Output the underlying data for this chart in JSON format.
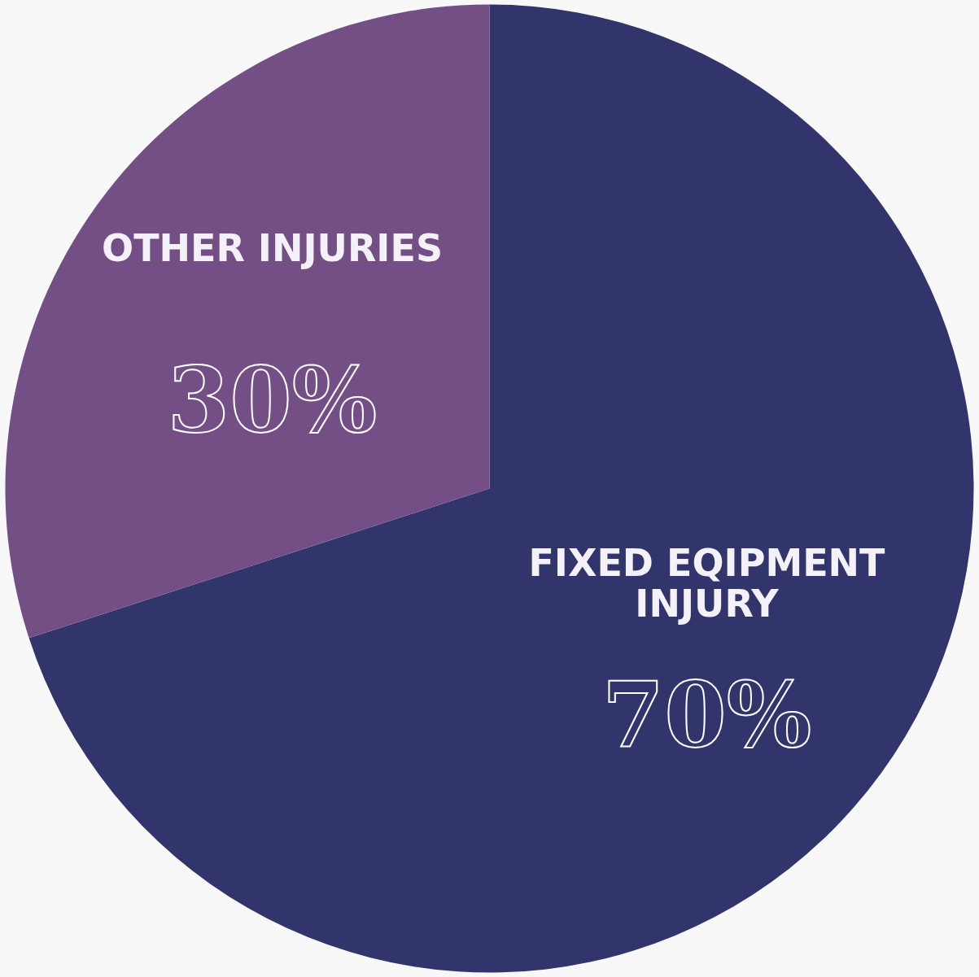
{
  "chart_data": {
    "type": "pie",
    "categories": [
      "FIXED EQIPMENT INJURY",
      "OTHER INJURIES"
    ],
    "values": [
      70,
      30
    ],
    "colors": [
      "#31356b",
      "#734f86"
    ],
    "value_labels": [
      "70%",
      "30%"
    ],
    "legend": false
  }
}
